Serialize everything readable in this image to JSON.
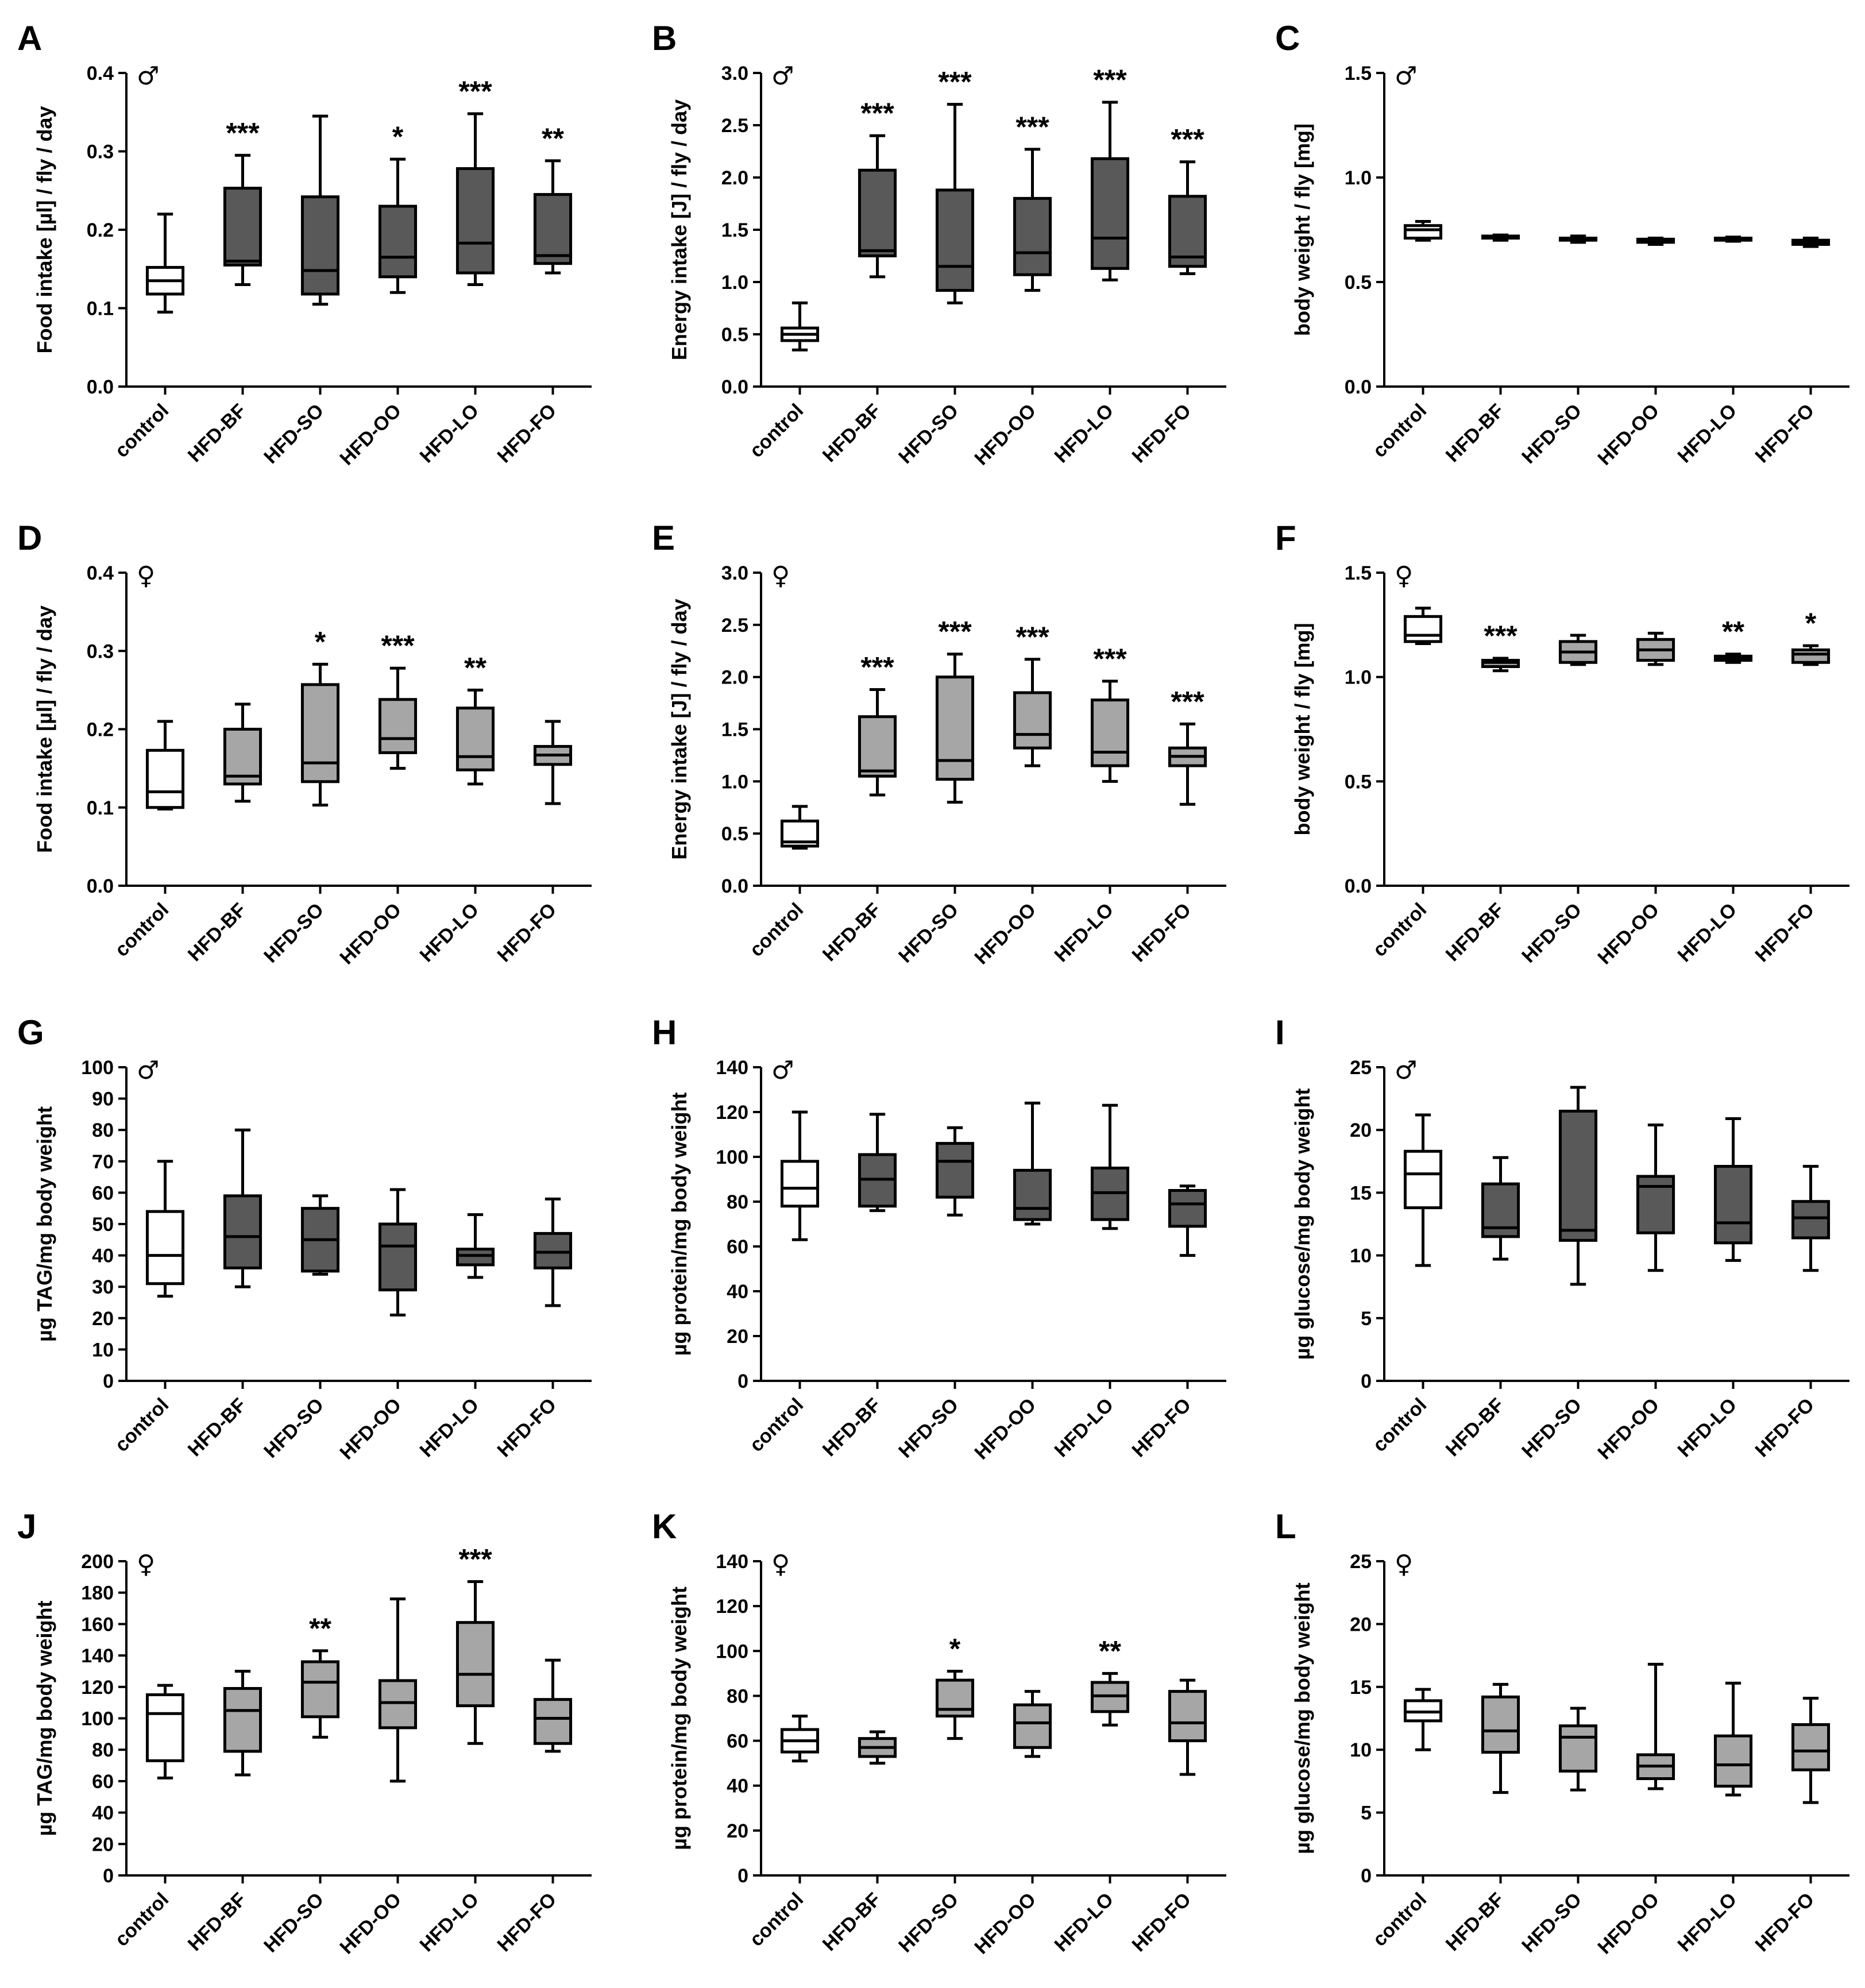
{
  "colors": {
    "control": "#ffffff",
    "dark": "#595959",
    "light": "#a6a6a6"
  },
  "chart_data": [
    {
      "panel": "A",
      "sex": "♂",
      "type": "box",
      "ylabel": "Food intake [µl] / fly / day",
      "ylim": [
        0,
        0.4
      ],
      "yticks": [
        "0.0",
        "0.1",
        "0.2",
        "0.3",
        "0.4"
      ],
      "ytick_values": [
        0,
        0.1,
        0.2,
        0.3,
        0.4
      ],
      "categories": [
        "control",
        "HFD-BF",
        "HFD-SO",
        "HFD-OO",
        "HFD-LO",
        "HFD-FO"
      ],
      "fill": [
        "control",
        "dark",
        "dark",
        "dark",
        "dark",
        "dark"
      ],
      "boxes": [
        {
          "min": 0.095,
          "q1": 0.118,
          "median": 0.135,
          "q3": 0.152,
          "max": 0.22
        },
        {
          "min": 0.13,
          "q1": 0.155,
          "median": 0.16,
          "q3": 0.253,
          "max": 0.295
        },
        {
          "min": 0.105,
          "q1": 0.118,
          "median": 0.148,
          "q3": 0.242,
          "max": 0.345
        },
        {
          "min": 0.12,
          "q1": 0.14,
          "median": 0.165,
          "q3": 0.23,
          "max": 0.29
        },
        {
          "min": 0.13,
          "q1": 0.145,
          "median": 0.183,
          "q3": 0.278,
          "max": 0.348
        },
        {
          "min": 0.145,
          "q1": 0.157,
          "median": 0.167,
          "q3": 0.245,
          "max": 0.288
        }
      ],
      "significance": [
        "",
        "***",
        "",
        "*",
        "***",
        "**"
      ]
    },
    {
      "panel": "B",
      "sex": "♂",
      "type": "box",
      "ylabel": "Energy intake [J] / fly / day",
      "ylim": [
        0,
        3.0
      ],
      "yticks": [
        "0.0",
        "0.5",
        "1.0",
        "1.5",
        "2.0",
        "2.5",
        "3.0"
      ],
      "ytick_values": [
        0,
        0.5,
        1,
        1.5,
        2,
        2.5,
        3
      ],
      "categories": [
        "control",
        "HFD-BF",
        "HFD-SO",
        "HFD-OO",
        "HFD-LO",
        "HFD-FO"
      ],
      "fill": [
        "control",
        "dark",
        "dark",
        "dark",
        "dark",
        "dark"
      ],
      "boxes": [
        {
          "min": 0.35,
          "q1": 0.44,
          "median": 0.5,
          "q3": 0.56,
          "max": 0.8
        },
        {
          "min": 1.05,
          "q1": 1.25,
          "median": 1.3,
          "q3": 2.07,
          "max": 2.4
        },
        {
          "min": 0.8,
          "q1": 0.92,
          "median": 1.15,
          "q3": 1.88,
          "max": 2.7
        },
        {
          "min": 0.92,
          "q1": 1.07,
          "median": 1.28,
          "q3": 1.8,
          "max": 2.27
        },
        {
          "min": 1.02,
          "q1": 1.13,
          "median": 1.42,
          "q3": 2.18,
          "max": 2.72
        },
        {
          "min": 1.08,
          "q1": 1.15,
          "median": 1.24,
          "q3": 1.82,
          "max": 2.15
        }
      ],
      "significance": [
        "",
        "***",
        "***",
        "***",
        "***",
        "***"
      ]
    },
    {
      "panel": "C",
      "sex": "♂",
      "type": "box",
      "ylabel": "body weight / fly [mg]",
      "ylim": [
        0,
        1.5
      ],
      "yticks": [
        "0.0",
        "0.5",
        "1.0",
        "1.5"
      ],
      "ytick_values": [
        0,
        0.5,
        1,
        1.5
      ],
      "categories": [
        "control",
        "HFD-BF",
        "HFD-SO",
        "HFD-OO",
        "HFD-LO",
        "HFD-FO"
      ],
      "fill": [
        "control",
        "dark",
        "dark",
        "dark",
        "dark",
        "dark"
      ],
      "boxes": [
        {
          "min": 0.7,
          "q1": 0.71,
          "median": 0.75,
          "q3": 0.77,
          "max": 0.79
        },
        {
          "min": 0.7,
          "q1": 0.71,
          "median": 0.715,
          "q3": 0.72,
          "max": 0.725
        },
        {
          "min": 0.69,
          "q1": 0.7,
          "median": 0.705,
          "q3": 0.71,
          "max": 0.72
        },
        {
          "min": 0.68,
          "q1": 0.69,
          "median": 0.695,
          "q3": 0.705,
          "max": 0.71
        },
        {
          "min": 0.695,
          "q1": 0.7,
          "median": 0.705,
          "q3": 0.71,
          "max": 0.715
        },
        {
          "min": 0.67,
          "q1": 0.68,
          "median": 0.69,
          "q3": 0.7,
          "max": 0.71
        }
      ],
      "significance": [
        "",
        "",
        "",
        "",
        "",
        ""
      ]
    },
    {
      "panel": "D",
      "sex": "♀",
      "type": "box",
      "ylabel": "Food intake [µl] / fly / day",
      "ylim": [
        0,
        0.4
      ],
      "yticks": [
        "0.0",
        "0.1",
        "0.2",
        "0.3",
        "0.4"
      ],
      "ytick_values": [
        0,
        0.1,
        0.2,
        0.3,
        0.4
      ],
      "categories": [
        "control",
        "HFD-BF",
        "HFD-SO",
        "HFD-OO",
        "HFD-LO",
        "HFD-FO"
      ],
      "fill": [
        "control",
        "light",
        "light",
        "light",
        "light",
        "light"
      ],
      "boxes": [
        {
          "min": 0.098,
          "q1": 0.1,
          "median": 0.12,
          "q3": 0.173,
          "max": 0.21
        },
        {
          "min": 0.108,
          "q1": 0.13,
          "median": 0.14,
          "q3": 0.2,
          "max": 0.232
        },
        {
          "min": 0.103,
          "q1": 0.133,
          "median": 0.157,
          "q3": 0.257,
          "max": 0.283
        },
        {
          "min": 0.15,
          "q1": 0.17,
          "median": 0.188,
          "q3": 0.238,
          "max": 0.278
        },
        {
          "min": 0.13,
          "q1": 0.148,
          "median": 0.165,
          "q3": 0.227,
          "max": 0.25
        },
        {
          "min": 0.105,
          "q1": 0.155,
          "median": 0.167,
          "q3": 0.178,
          "max": 0.21
        }
      ],
      "significance": [
        "",
        "",
        "*",
        "***",
        "**",
        ""
      ]
    },
    {
      "panel": "E",
      "sex": "♀",
      "type": "box",
      "ylabel": "Energy intake [J] / fly / day",
      "ylim": [
        0,
        3.0
      ],
      "yticks": [
        "0.0",
        "0.5",
        "1.0",
        "1.5",
        "2.0",
        "2.5",
        "3.0"
      ],
      "ytick_values": [
        0,
        0.5,
        1,
        1.5,
        2,
        2.5,
        3
      ],
      "categories": [
        "control",
        "HFD-BF",
        "HFD-SO",
        "HFD-OO",
        "HFD-LO",
        "HFD-FO"
      ],
      "fill": [
        "control",
        "light",
        "light",
        "light",
        "light",
        "light"
      ],
      "boxes": [
        {
          "min": 0.36,
          "q1": 0.38,
          "median": 0.42,
          "q3": 0.62,
          "max": 0.76
        },
        {
          "min": 0.87,
          "q1": 1.05,
          "median": 1.1,
          "q3": 1.62,
          "max": 1.88
        },
        {
          "min": 0.8,
          "q1": 1.02,
          "median": 1.2,
          "q3": 2.0,
          "max": 2.22
        },
        {
          "min": 1.15,
          "q1": 1.32,
          "median": 1.45,
          "q3": 1.85,
          "max": 2.17
        },
        {
          "min": 1.0,
          "q1": 1.15,
          "median": 1.28,
          "q3": 1.78,
          "max": 1.96
        },
        {
          "min": 0.78,
          "q1": 1.15,
          "median": 1.24,
          "q3": 1.32,
          "max": 1.55
        }
      ],
      "significance": [
        "",
        "***",
        "***",
        "***",
        "***",
        "***"
      ]
    },
    {
      "panel": "F",
      "sex": "♀",
      "type": "box",
      "ylabel": "body weight / fly [mg]",
      "ylim": [
        0,
        1.5
      ],
      "yticks": [
        "0.0",
        "0.5",
        "1.0",
        "1.5"
      ],
      "ytick_values": [
        0,
        0.5,
        1,
        1.5
      ],
      "categories": [
        "control",
        "HFD-BF",
        "HFD-SO",
        "HFD-OO",
        "HFD-LO",
        "HFD-FO"
      ],
      "fill": [
        "control",
        "light",
        "light",
        "light",
        "light",
        "light"
      ],
      "boxes": [
        {
          "min": 1.16,
          "q1": 1.17,
          "median": 1.2,
          "q3": 1.29,
          "max": 1.33
        },
        {
          "min": 1.03,
          "q1": 1.05,
          "median": 1.07,
          "q3": 1.08,
          "max": 1.09
        },
        {
          "min": 1.06,
          "q1": 1.07,
          "median": 1.12,
          "q3": 1.17,
          "max": 1.2
        },
        {
          "min": 1.06,
          "q1": 1.08,
          "median": 1.13,
          "q3": 1.18,
          "max": 1.21
        },
        {
          "min": 1.07,
          "q1": 1.08,
          "median": 1.09,
          "q3": 1.1,
          "max": 1.11
        },
        {
          "min": 1.06,
          "q1": 1.07,
          "median": 1.11,
          "q3": 1.13,
          "max": 1.15
        }
      ],
      "significance": [
        "",
        "***",
        "",
        "",
        "**",
        "*"
      ]
    },
    {
      "panel": "G",
      "sex": "♂",
      "type": "box",
      "ylabel": "µg TAG/mg body weight",
      "ylim": [
        0,
        100
      ],
      "yticks": [
        "0",
        "10",
        "20",
        "30",
        "40",
        "50",
        "60",
        "70",
        "80",
        "90",
        "100"
      ],
      "ytick_values": [
        0,
        10,
        20,
        30,
        40,
        50,
        60,
        70,
        80,
        90,
        100
      ],
      "categories": [
        "control",
        "HFD-BF",
        "HFD-SO",
        "HFD-OO",
        "HFD-LO",
        "HFD-FO"
      ],
      "fill": [
        "control",
        "dark",
        "dark",
        "dark",
        "dark",
        "dark"
      ],
      "boxes": [
        {
          "min": 27,
          "q1": 31,
          "median": 40,
          "q3": 54,
          "max": 70
        },
        {
          "min": 30,
          "q1": 36,
          "median": 46,
          "q3": 59,
          "max": 80
        },
        {
          "min": 34,
          "q1": 35,
          "median": 45,
          "q3": 55,
          "max": 59
        },
        {
          "min": 21,
          "q1": 29,
          "median": 43,
          "q3": 50,
          "max": 61
        },
        {
          "min": 33,
          "q1": 37,
          "median": 40,
          "q3": 42,
          "max": 53
        },
        {
          "min": 24,
          "q1": 36,
          "median": 41,
          "q3": 47,
          "max": 58
        }
      ],
      "significance": [
        "",
        "",
        "",
        "",
        "",
        ""
      ]
    },
    {
      "panel": "H",
      "sex": "♂",
      "type": "box",
      "ylabel": "µg protein/mg body weight",
      "ylim": [
        0,
        140
      ],
      "yticks": [
        "0",
        "20",
        "40",
        "60",
        "80",
        "100",
        "120",
        "140"
      ],
      "ytick_values": [
        0,
        20,
        40,
        60,
        80,
        100,
        120,
        140
      ],
      "categories": [
        "control",
        "HFD-BF",
        "HFD-SO",
        "HFD-OO",
        "HFD-LO",
        "HFD-FO"
      ],
      "fill": [
        "control",
        "dark",
        "dark",
        "dark",
        "dark",
        "dark"
      ],
      "boxes": [
        {
          "min": 63,
          "q1": 78,
          "median": 86,
          "q3": 98,
          "max": 120
        },
        {
          "min": 76,
          "q1": 78,
          "median": 90,
          "q3": 101,
          "max": 119
        },
        {
          "min": 74,
          "q1": 82,
          "median": 98,
          "q3": 106,
          "max": 113
        },
        {
          "min": 70,
          "q1": 72,
          "median": 77,
          "q3": 94,
          "max": 124
        },
        {
          "min": 68,
          "q1": 72,
          "median": 84,
          "q3": 95,
          "max": 123
        },
        {
          "min": 56,
          "q1": 69,
          "median": 79,
          "q3": 85,
          "max": 87
        }
      ],
      "significance": [
        "",
        "",
        "",
        "",
        "",
        ""
      ]
    },
    {
      "panel": "I",
      "sex": "♂",
      "type": "box",
      "ylabel": "µg glucose/mg body weight",
      "ylim": [
        0,
        25
      ],
      "yticks": [
        "0",
        "5",
        "10",
        "15",
        "20",
        "25"
      ],
      "ytick_values": [
        0,
        5,
        10,
        15,
        20,
        25
      ],
      "categories": [
        "control",
        "HFD-BF",
        "HFD-SO",
        "HFD-OO",
        "HFD-LO",
        "HFD-FO"
      ],
      "fill": [
        "control",
        "dark",
        "dark",
        "dark",
        "dark",
        "dark"
      ],
      "boxes": [
        {
          "min": 9.2,
          "q1": 13.8,
          "median": 16.5,
          "q3": 18.3,
          "max": 21.2
        },
        {
          "min": 9.7,
          "q1": 11.5,
          "median": 12.2,
          "q3": 15.7,
          "max": 17.8
        },
        {
          "min": 7.7,
          "q1": 11.2,
          "median": 12.0,
          "q3": 21.5,
          "max": 23.4
        },
        {
          "min": 8.8,
          "q1": 11.8,
          "median": 15.5,
          "q3": 16.3,
          "max": 20.4
        },
        {
          "min": 9.6,
          "q1": 11.0,
          "median": 12.6,
          "q3": 17.1,
          "max": 20.9
        },
        {
          "min": 8.8,
          "q1": 11.4,
          "median": 13.0,
          "q3": 14.3,
          "max": 17.1
        }
      ],
      "significance": [
        "",
        "",
        "",
        "",
        "",
        ""
      ]
    },
    {
      "panel": "J",
      "sex": "♀",
      "type": "box",
      "ylabel": "µg TAG/mg body weight",
      "ylim": [
        0,
        200
      ],
      "yticks": [
        "0",
        "20",
        "40",
        "60",
        "80",
        "100",
        "120",
        "140",
        "160",
        "180",
        "200"
      ],
      "ytick_values": [
        0,
        20,
        40,
        60,
        80,
        100,
        120,
        140,
        160,
        180,
        200
      ],
      "categories": [
        "control",
        "HFD-BF",
        "HFD-SO",
        "HFD-OO",
        "HFD-LO",
        "HFD-FO"
      ],
      "fill": [
        "control",
        "light",
        "light",
        "light",
        "light",
        "light"
      ],
      "boxes": [
        {
          "min": 62,
          "q1": 73,
          "median": 103,
          "q3": 115,
          "max": 121
        },
        {
          "min": 64,
          "q1": 79,
          "median": 105,
          "q3": 119,
          "max": 130
        },
        {
          "min": 88,
          "q1": 101,
          "median": 123,
          "q3": 136,
          "max": 143
        },
        {
          "min": 60,
          "q1": 94,
          "median": 110,
          "q3": 124,
          "max": 176
        },
        {
          "min": 84,
          "q1": 108,
          "median": 128,
          "q3": 161,
          "max": 187
        },
        {
          "min": 79,
          "q1": 84,
          "median": 100,
          "q3": 112,
          "max": 137
        }
      ],
      "significance": [
        "",
        "",
        "**",
        "",
        "***",
        ""
      ]
    },
    {
      "panel": "K",
      "sex": "♀",
      "type": "box",
      "ylabel": "µg protein/mg body weight",
      "ylim": [
        0,
        140
      ],
      "yticks": [
        "0",
        "20",
        "40",
        "60",
        "80",
        "100",
        "120",
        "140"
      ],
      "ytick_values": [
        0,
        20,
        40,
        60,
        80,
        100,
        120,
        140
      ],
      "categories": [
        "control",
        "HFD-BF",
        "HFD-SO",
        "HFD-OO",
        "HFD-LO",
        "HFD-FO"
      ],
      "fill": [
        "control",
        "light",
        "light",
        "light",
        "light",
        "light"
      ],
      "boxes": [
        {
          "min": 51,
          "q1": 55,
          "median": 60,
          "q3": 65,
          "max": 71
        },
        {
          "min": 50,
          "q1": 53,
          "median": 57,
          "q3": 61,
          "max": 64
        },
        {
          "min": 61,
          "q1": 71,
          "median": 74,
          "q3": 87,
          "max": 91
        },
        {
          "min": 53,
          "q1": 57,
          "median": 68,
          "q3": 76,
          "max": 82
        },
        {
          "min": 67,
          "q1": 73,
          "median": 80,
          "q3": 86,
          "max": 90
        },
        {
          "min": 45,
          "q1": 60,
          "median": 68,
          "q3": 82,
          "max": 87
        }
      ],
      "significance": [
        "",
        "",
        "*",
        "",
        "**",
        ""
      ]
    },
    {
      "panel": "L",
      "sex": "♀",
      "type": "box",
      "ylabel": "µg glucose/mg body weight",
      "ylim": [
        0,
        25
      ],
      "yticks": [
        "0",
        "5",
        "10",
        "15",
        "20",
        "25"
      ],
      "ytick_values": [
        0,
        5,
        10,
        15,
        20,
        25
      ],
      "categories": [
        "control",
        "HFD-BF",
        "HFD-SO",
        "HFD-OO",
        "HFD-LO",
        "HFD-FO"
      ],
      "fill": [
        "control",
        "light",
        "light",
        "light",
        "light",
        "light"
      ],
      "boxes": [
        {
          "min": 10.0,
          "q1": 12.3,
          "median": 13.0,
          "q3": 13.9,
          "max": 14.8
        },
        {
          "min": 6.6,
          "q1": 9.8,
          "median": 11.5,
          "q3": 14.2,
          "max": 15.2
        },
        {
          "min": 6.8,
          "q1": 8.3,
          "median": 11.0,
          "q3": 11.9,
          "max": 13.3
        },
        {
          "min": 6.9,
          "q1": 7.7,
          "median": 8.7,
          "q3": 9.6,
          "max": 16.8
        },
        {
          "min": 6.4,
          "q1": 7.1,
          "median": 8.8,
          "q3": 11.1,
          "max": 15.3
        },
        {
          "min": 5.8,
          "q1": 8.4,
          "median": 9.9,
          "q3": 12.0,
          "max": 14.1
        }
      ],
      "significance": [
        "",
        "",
        "",
        "",
        "",
        ""
      ]
    }
  ]
}
